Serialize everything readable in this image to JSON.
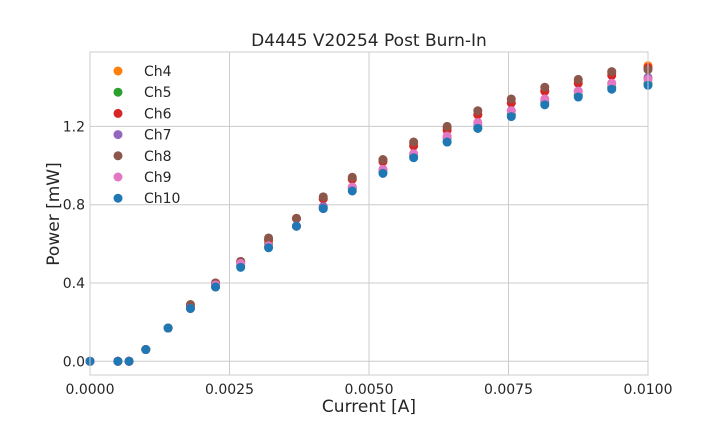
{
  "chart_data": {
    "type": "scatter",
    "title": "D4445 V20254 Post Burn-In",
    "xlabel": "Current [A]",
    "ylabel": "Power [mW]",
    "xlim": [
      0.0,
      0.01
    ],
    "ylim": [
      -0.07,
      1.58
    ],
    "xticks": [
      0.0,
      0.0025,
      0.005,
      0.0075,
      0.01
    ],
    "xtick_labels": [
      "0.0000",
      "0.0025",
      "0.0050",
      "0.0075",
      "0.0100"
    ],
    "yticks": [
      0.0,
      0.4,
      0.8,
      1.2
    ],
    "ytick_labels": [
      "0.0",
      "0.4",
      "0.8",
      "1.2"
    ],
    "grid": true,
    "legend_position": "top-left",
    "x": [
      0.0,
      0.0005,
      0.0007,
      0.001,
      0.0014,
      0.0018,
      0.00225,
      0.0027,
      0.0032,
      0.0037,
      0.00418,
      0.0047,
      0.00525,
      0.0058,
      0.0064,
      0.00695,
      0.00755,
      0.00815,
      0.00875,
      0.00935,
      0.01
    ],
    "series": [
      {
        "name": "Ch4",
        "color": "#ff7f0e",
        "values": [
          0.0,
          0.0,
          0.0,
          0.06,
          0.17,
          0.28,
          0.39,
          0.5,
          0.62,
          0.73,
          0.83,
          0.93,
          1.03,
          1.11,
          1.19,
          1.26,
          1.32,
          1.38,
          1.43,
          1.47,
          1.51
        ]
      },
      {
        "name": "Ch5",
        "color": "#2ca02c",
        "values": [
          0.0,
          0.0,
          0.0,
          0.06,
          0.17,
          0.27,
          0.38,
          0.49,
          0.6,
          0.69,
          0.79,
          0.88,
          0.97,
          1.05,
          1.12,
          1.19,
          1.26,
          1.32,
          1.36,
          1.4,
          1.42
        ]
      },
      {
        "name": "Ch6",
        "color": "#d62728",
        "values": [
          0.0,
          0.0,
          0.0,
          0.06,
          0.17,
          0.28,
          0.4,
          0.51,
          0.62,
          0.73,
          0.83,
          0.93,
          1.02,
          1.1,
          1.18,
          1.26,
          1.32,
          1.38,
          1.42,
          1.46,
          1.5
        ]
      },
      {
        "name": "Ch7",
        "color": "#9467bd",
        "values": [
          0.0,
          0.0,
          0.0,
          0.06,
          0.17,
          0.27,
          0.38,
          0.49,
          0.59,
          0.69,
          0.79,
          0.89,
          0.98,
          1.06,
          1.14,
          1.21,
          1.28,
          1.33,
          1.38,
          1.42,
          1.45
        ]
      },
      {
        "name": "Ch8",
        "color": "#8c564b",
        "values": [
          0.0,
          0.0,
          0.0,
          0.06,
          0.17,
          0.29,
          0.4,
          0.51,
          0.63,
          0.73,
          0.84,
          0.94,
          1.03,
          1.12,
          1.2,
          1.28,
          1.34,
          1.4,
          1.44,
          1.48,
          1.49
        ]
      },
      {
        "name": "Ch9",
        "color": "#e377c2",
        "values": [
          0.0,
          0.0,
          0.0,
          0.06,
          0.17,
          0.27,
          0.39,
          0.5,
          0.59,
          0.69,
          0.78,
          0.89,
          0.98,
          1.06,
          1.15,
          1.22,
          1.28,
          1.34,
          1.38,
          1.42,
          1.44
        ]
      },
      {
        "name": "Ch10",
        "color": "#1f77b4",
        "values": [
          0.0,
          0.0,
          0.0,
          0.06,
          0.17,
          0.27,
          0.38,
          0.48,
          0.58,
          0.69,
          0.78,
          0.87,
          0.96,
          1.04,
          1.12,
          1.19,
          1.25,
          1.31,
          1.35,
          1.39,
          1.41
        ]
      }
    ]
  }
}
